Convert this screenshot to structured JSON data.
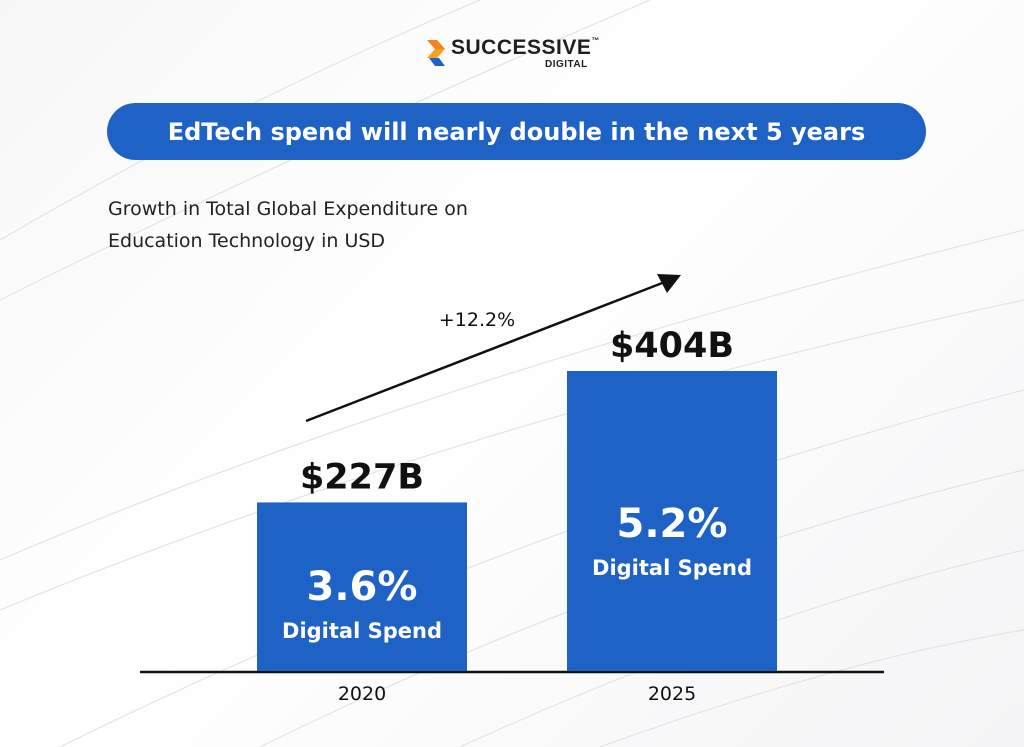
{
  "brand": {
    "name": "SUCCESSIVE",
    "tm": "™",
    "sub": "DIGITAL",
    "colors": {
      "orange": "#f58220",
      "blue": "#1f62c6"
    }
  },
  "headline": "EdTech spend will nearly double in the next 5 years",
  "subtitle": {
    "line1": "Growth in Total Global Expenditure on",
    "line2": "Education Technology in USD"
  },
  "chart_data": {
    "type": "bar",
    "categories": [
      "2020",
      "2025"
    ],
    "values": [
      227,
      404
    ],
    "value_labels": [
      "$227B",
      "$404B"
    ],
    "digital_share": [
      "3.6%",
      "5.2%"
    ],
    "digital_label": "Digital Spend",
    "growth_annotation": "+12.2%",
    "unit": "USD billions",
    "ylim": [
      0,
      404
    ],
    "bar_color": "#1f62c6",
    "grid": false,
    "legend": "none"
  }
}
